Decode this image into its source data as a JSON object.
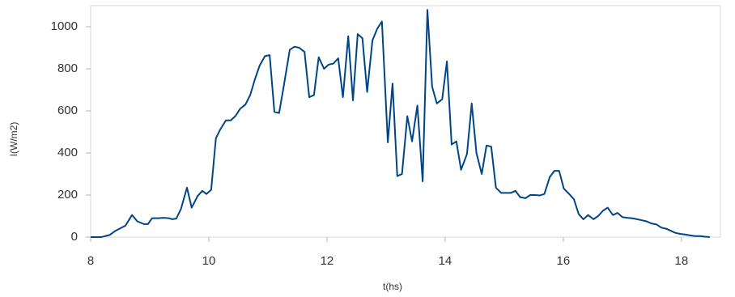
{
  "chart_data": {
    "type": "line",
    "x_label": "t(hs)",
    "y_label": "I(W/m2)",
    "x": [
      8.0,
      8.18,
      8.32,
      8.42,
      8.59,
      8.7,
      8.79,
      8.9,
      8.97,
      9.04,
      9.14,
      9.23,
      9.32,
      9.38,
      9.45,
      9.53,
      9.63,
      9.71,
      9.81,
      9.89,
      9.96,
      10.04,
      10.12,
      10.19,
      10.29,
      10.37,
      10.45,
      10.53,
      10.62,
      10.7,
      10.78,
      10.86,
      10.95,
      11.03,
      11.11,
      11.19,
      11.27,
      11.37,
      11.45,
      11.53,
      11.62,
      11.7,
      11.78,
      11.86,
      11.95,
      12.03,
      12.11,
      12.19,
      12.27,
      12.36,
      12.44,
      12.52,
      12.6,
      12.68,
      12.77,
      12.85,
      12.93,
      13.03,
      13.11,
      13.19,
      13.27,
      13.36,
      13.44,
      13.53,
      13.62,
      13.7,
      13.78,
      13.86,
      13.95,
      14.03,
      14.11,
      14.19,
      14.27,
      14.37,
      14.45,
      14.53,
      14.62,
      14.7,
      14.78,
      14.86,
      14.95,
      15.03,
      15.11,
      15.19,
      15.27,
      15.36,
      15.44,
      15.52,
      15.6,
      15.68,
      15.77,
      15.85,
      15.93,
      16.01,
      16.1,
      16.18,
      16.26,
      16.34,
      16.42,
      16.51,
      16.59,
      16.67,
      16.75,
      16.84,
      16.92,
      17.0,
      17.08,
      17.16,
      17.25,
      17.33,
      17.41,
      17.49,
      17.58,
      17.66,
      17.74,
      17.82,
      17.9,
      17.99,
      18.07,
      18.15,
      18.23,
      18.32,
      18.4,
      18.48
    ],
    "series": [
      {
        "name": "I",
        "color": "#004586",
        "values": [
          0,
          0,
          10,
          30,
          55,
          105,
          75,
          62,
          62,
          90,
          90,
          92,
          90,
          85,
          88,
          135,
          235,
          140,
          195,
          220,
          205,
          225,
          470,
          510,
          555,
          555,
          575,
          610,
          630,
          675,
          750,
          815,
          860,
          865,
          595,
          590,
          720,
          890,
          905,
          900,
          880,
          665,
          675,
          855,
          800,
          820,
          825,
          850,
          665,
          955,
          650,
          965,
          945,
          690,
          935,
          990,
          1025,
          450,
          730,
          290,
          300,
          575,
          455,
          625,
          265,
          1080,
          715,
          635,
          655,
          835,
          440,
          455,
          320,
          395,
          635,
          400,
          300,
          435,
          430,
          235,
          210,
          210,
          210,
          220,
          190,
          185,
          200,
          200,
          198,
          205,
          285,
          315,
          315,
          230,
          205,
          180,
          110,
          85,
          105,
          85,
          100,
          125,
          140,
          105,
          115,
          95,
          92,
          90,
          85,
          80,
          75,
          65,
          60,
          45,
          40,
          30,
          20,
          15,
          12,
          8,
          5,
          5,
          2,
          0
        ]
      }
    ],
    "xlim": [
      8,
      18.66
    ],
    "xticks": [
      8,
      10,
      12,
      14,
      16,
      18
    ],
    "ylim": [
      0,
      1100
    ],
    "yticks": [
      0,
      200,
      400,
      600,
      800,
      1000
    ],
    "grid": false
  }
}
